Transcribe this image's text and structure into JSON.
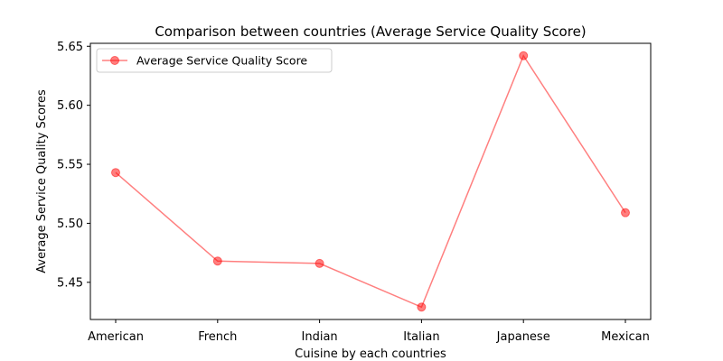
{
  "chart_data": {
    "type": "line",
    "title": "Comparison between countries (Average Service Quality Score)",
    "xlabel": "Cuisine by each countries",
    "ylabel": "Average Service Quality Scores",
    "categories": [
      "American",
      "French",
      "Indian",
      "Italian",
      "Japanese",
      "Mexican"
    ],
    "series": [
      {
        "name": "Average Service Quality Score",
        "values": [
          5.543,
          5.468,
          5.466,
          5.429,
          5.642,
          5.509
        ],
        "color": "#ff0000",
        "opacity": 0.5
      }
    ],
    "ylim": [
      5.4185,
      5.6525
    ],
    "yticks": [
      5.45,
      5.5,
      5.55,
      5.6,
      5.65
    ],
    "ytick_labels": [
      "5.45",
      "5.50",
      "5.55",
      "5.60",
      "5.65"
    ],
    "grid": false,
    "legend_position": "top-left"
  }
}
